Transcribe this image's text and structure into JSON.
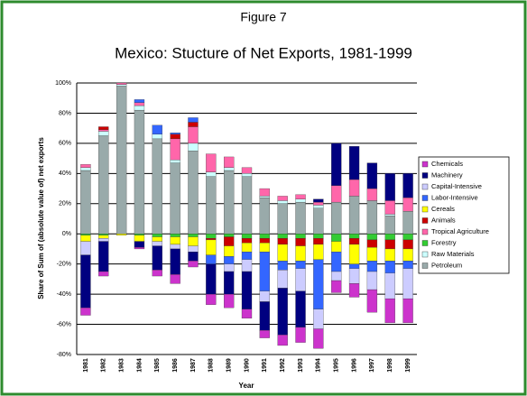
{
  "chart_data": {
    "type": "stacked_bar",
    "figure_label": "Figure 7",
    "title": "Mexico: Stucture of Net Exports, 1981-1999",
    "y_label": "Share of Sum of (absolute value of) net exports",
    "x_label": "Year",
    "categories": [
      "1981",
      "1982",
      "1983",
      "1984",
      "1985",
      "1986",
      "1987",
      "1988",
      "1989",
      "1990",
      "1991",
      "1992",
      "1993",
      "1994",
      "1995",
      "1996",
      "1997",
      "1998",
      "1999"
    ],
    "series": [
      {
        "name": "Chemicals",
        "color": "#cc33cc",
        "values": [
          -5,
          -3,
          0,
          -1,
          -4,
          -6,
          -4,
          -7,
          -9,
          -6,
          -5,
          -7,
          -10,
          -13,
          -8,
          -9,
          -15,
          -16,
          -16
        ]
      },
      {
        "name": "Machinery",
        "color": "#000080",
        "values": [
          -35,
          -20,
          0,
          -4,
          -16,
          -17,
          -6,
          -20,
          -15,
          -25,
          -19,
          -31,
          -24,
          2,
          28,
          22,
          17,
          18,
          16
        ]
      },
      {
        "name": "Capital-Intensive",
        "color": "#ccccff",
        "values": [
          -9,
          -2,
          0,
          0,
          -3,
          -3,
          -4,
          0,
          -5,
          -8,
          -7,
          -12,
          -15,
          -13,
          -6,
          -10,
          -12,
          -17,
          -20
        ]
      },
      {
        "name": "Labor-Intensive",
        "color": "#3366ff",
        "values": [
          0,
          0,
          0,
          2,
          6,
          1,
          3,
          -6,
          -5,
          -5,
          -26,
          -6,
          -5,
          -33,
          -13,
          -3,
          -7,
          -8,
          -5
        ]
      },
      {
        "name": "Cereals",
        "color": "#ffff00",
        "values": [
          -4,
          -2,
          -1,
          -4,
          -3,
          -5,
          -6,
          -10,
          -7,
          -6,
          -6,
          -11,
          -10,
          -10,
          -7,
          -13,
          -9,
          -8,
          -8
        ]
      },
      {
        "name": "Animals",
        "color": "#cc0000",
        "values": [
          0,
          2,
          0,
          0,
          0,
          3,
          3,
          -1,
          -6,
          -3,
          -3,
          -4,
          -5,
          -4,
          0,
          -4,
          -5,
          -6,
          -6
        ]
      },
      {
        "name": "Tropical Agriculture",
        "color": "#ff66aa",
        "values": [
          2,
          1,
          1,
          2,
          0,
          14,
          11,
          12,
          7,
          4,
          5,
          3,
          3,
          2,
          11,
          11,
          8,
          9,
          9
        ]
      },
      {
        "name": "Forestry",
        "color": "#33cc33",
        "values": [
          -1,
          -1,
          0,
          -1,
          -2,
          -2,
          -2,
          -3,
          -2,
          -3,
          -3,
          -3,
          -3,
          -3,
          -5,
          -3,
          -4,
          -4,
          -4
        ]
      },
      {
        "name": "Raw Materials",
        "color": "#ccffff",
        "values": [
          2,
          3,
          1,
          3,
          3,
          2,
          5,
          3,
          2,
          2,
          1,
          2,
          2,
          2,
          0,
          0,
          0,
          1,
          0
        ]
      },
      {
        "name": "Petroleum",
        "color": "#99aaaa",
        "values": [
          42,
          65,
          98,
          82,
          63,
          47,
          55,
          38,
          42,
          38,
          24,
          20,
          21,
          17,
          21,
          25,
          22,
          12,
          15
        ]
      }
    ],
    "ylim": [
      -80,
      100
    ],
    "yticks": [
      {
        "value": -80,
        "label": "-80%"
      },
      {
        "value": -60,
        "label": "-60%"
      },
      {
        "value": -40,
        "label": "-40%"
      },
      {
        "value": -20,
        "label": "-20%"
      },
      {
        "value": 0,
        "label": "0%"
      },
      {
        "value": 20,
        "label": "20%"
      },
      {
        "value": 40,
        "label": "40%"
      },
      {
        "value": 60,
        "label": "60%"
      },
      {
        "value": 80,
        "label": "80%"
      },
      {
        "value": 100,
        "label": "100%"
      }
    ],
    "grid": true,
    "legend": "right"
  }
}
